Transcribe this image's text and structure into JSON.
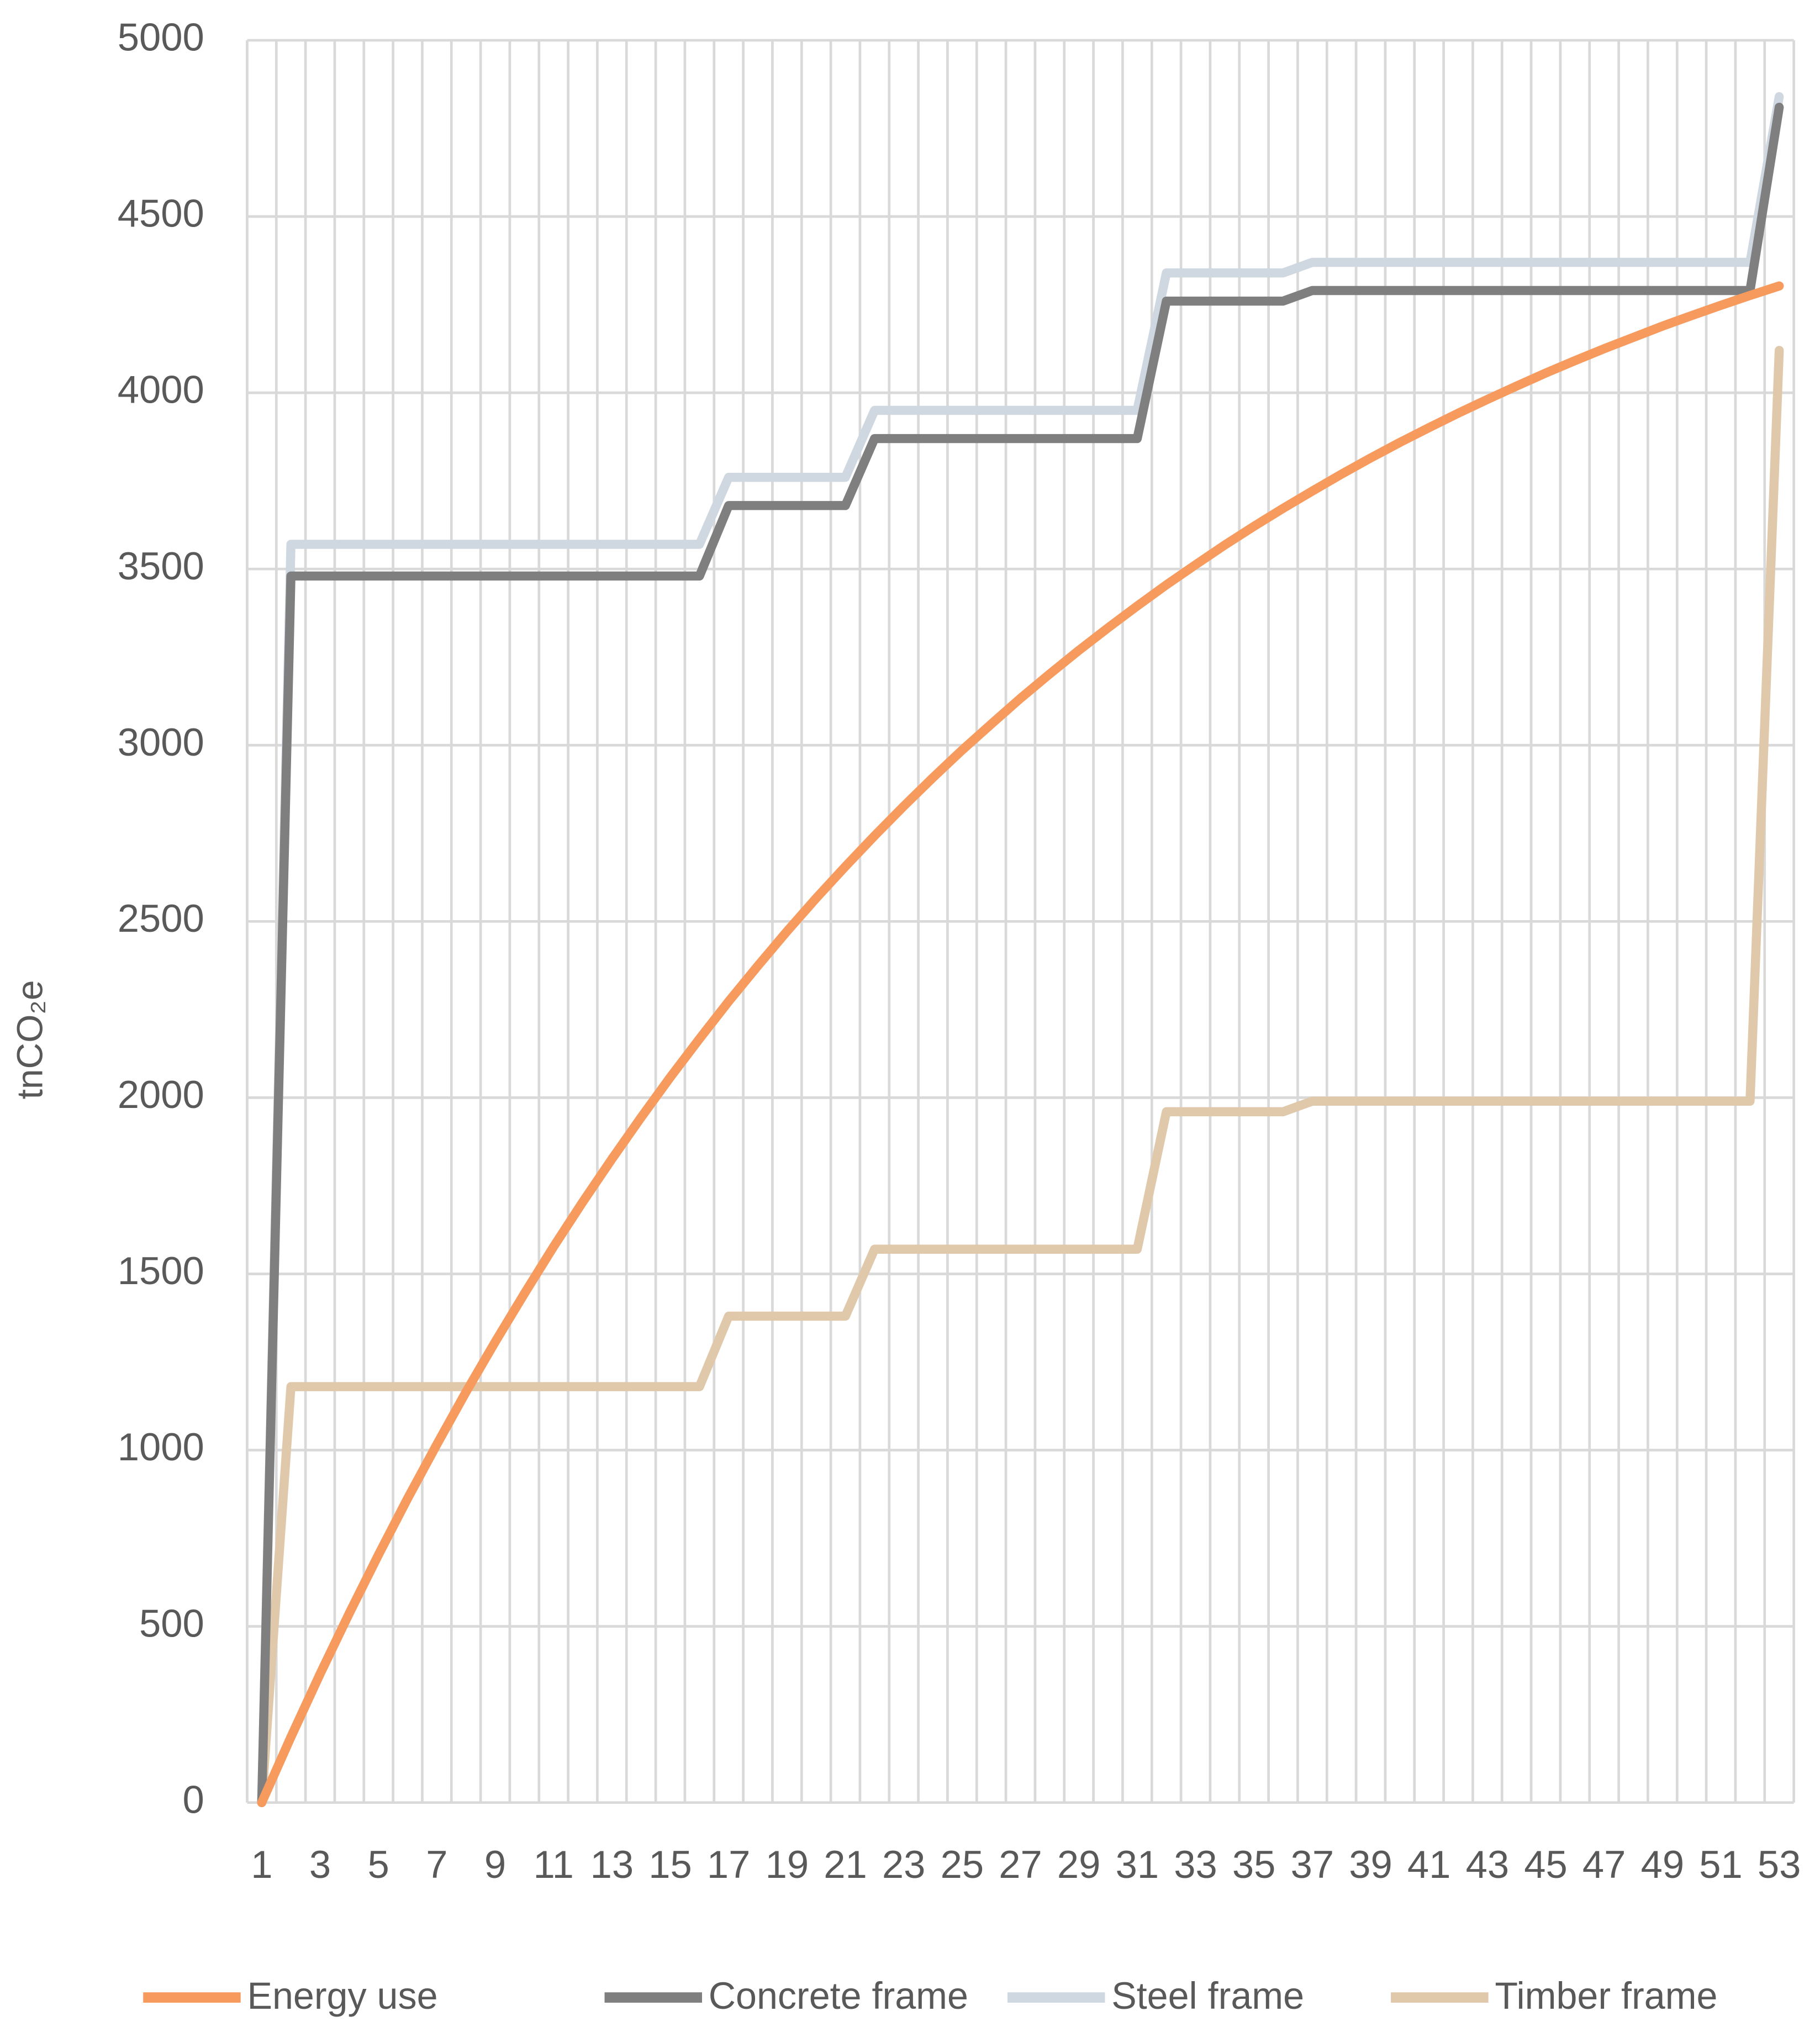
{
  "chart_data": {
    "type": "line",
    "y_label": "tnCO₂e",
    "categories": [
      "1",
      null,
      "3",
      null,
      "5",
      null,
      "7",
      null,
      "9",
      null,
      "11",
      null,
      "13",
      null,
      "15",
      null,
      "17",
      null,
      "19",
      null,
      "21",
      null,
      "23",
      null,
      "25",
      null,
      "27",
      null,
      "29",
      null,
      "31",
      null,
      "33",
      null,
      "35",
      null,
      "37",
      null,
      "39",
      null,
      "41",
      null,
      "43",
      null,
      "45",
      null,
      "47",
      null,
      "49",
      null,
      "51",
      null,
      "53"
    ],
    "series": [
      {
        "name": "Energy use",
        "color": "#f79a5e",
        "values": [
          0,
          186,
          365,
          537,
          703,
          863,
          1016,
          1165,
          1307,
          1444,
          1577,
          1704,
          1826,
          1944,
          2058,
          2167,
          2273,
          2374,
          2472,
          2566,
          2656,
          2743,
          2827,
          2908,
          2986,
          3060,
          3133,
          3202,
          3269,
          3333,
          3395,
          3455,
          3512,
          3568,
          3621,
          3672,
          3721,
          3769,
          3815,
          3859,
          3901,
          3942,
          3981,
          4019,
          4056,
          4091,
          4125,
          4157,
          4189,
          4219,
          4248,
          4276,
          4303
        ]
      },
      {
        "name": "Concrete frame",
        "color": "#7f7f7f",
        "values": [
          0,
          3480,
          3480,
          3480,
          3480,
          3480,
          3480,
          3480,
          3480,
          3480,
          3480,
          3480,
          3480,
          3480,
          3480,
          3480,
          3680,
          3680,
          3680,
          3680,
          3680,
          3870,
          3870,
          3870,
          3870,
          3870,
          3870,
          3870,
          3870,
          3870,
          3870,
          4260,
          4260,
          4260,
          4260,
          4260,
          4290,
          4290,
          4290,
          4290,
          4290,
          4290,
          4290,
          4290,
          4290,
          4290,
          4290,
          4290,
          4290,
          4290,
          4290,
          4290,
          4810
        ]
      },
      {
        "name": "Steel frame",
        "color": "#cfd8e0",
        "values": [
          0,
          3570,
          3570,
          3570,
          3570,
          3570,
          3570,
          3570,
          3570,
          3570,
          3570,
          3570,
          3570,
          3570,
          3570,
          3570,
          3760,
          3760,
          3760,
          3760,
          3760,
          3950,
          3950,
          3950,
          3950,
          3950,
          3950,
          3950,
          3950,
          3950,
          3950,
          4340,
          4340,
          4340,
          4340,
          4340,
          4370,
          4370,
          4370,
          4370,
          4370,
          4370,
          4370,
          4370,
          4370,
          4370,
          4370,
          4370,
          4370,
          4370,
          4370,
          4370,
          4840
        ]
      },
      {
        "name": "Timber frame",
        "color": "#e0c8aa",
        "values": [
          0,
          1180,
          1180,
          1180,
          1180,
          1180,
          1180,
          1180,
          1180,
          1180,
          1180,
          1180,
          1180,
          1180,
          1180,
          1180,
          1380,
          1380,
          1380,
          1380,
          1380,
          1570,
          1570,
          1570,
          1570,
          1570,
          1570,
          1570,
          1570,
          1570,
          1570,
          1960,
          1960,
          1960,
          1960,
          1960,
          1990,
          1990,
          1990,
          1990,
          1990,
          1990,
          1990,
          1990,
          1990,
          1990,
          1990,
          1990,
          1990,
          1990,
          1990,
          1990,
          4120
        ]
      }
    ],
    "ylim": [
      0,
      5000
    ],
    "yticks": [
      0,
      500,
      1000,
      1500,
      2000,
      2500,
      3000,
      3500,
      4000,
      4500,
      5000
    ],
    "grid": true,
    "legend": "bottom"
  }
}
